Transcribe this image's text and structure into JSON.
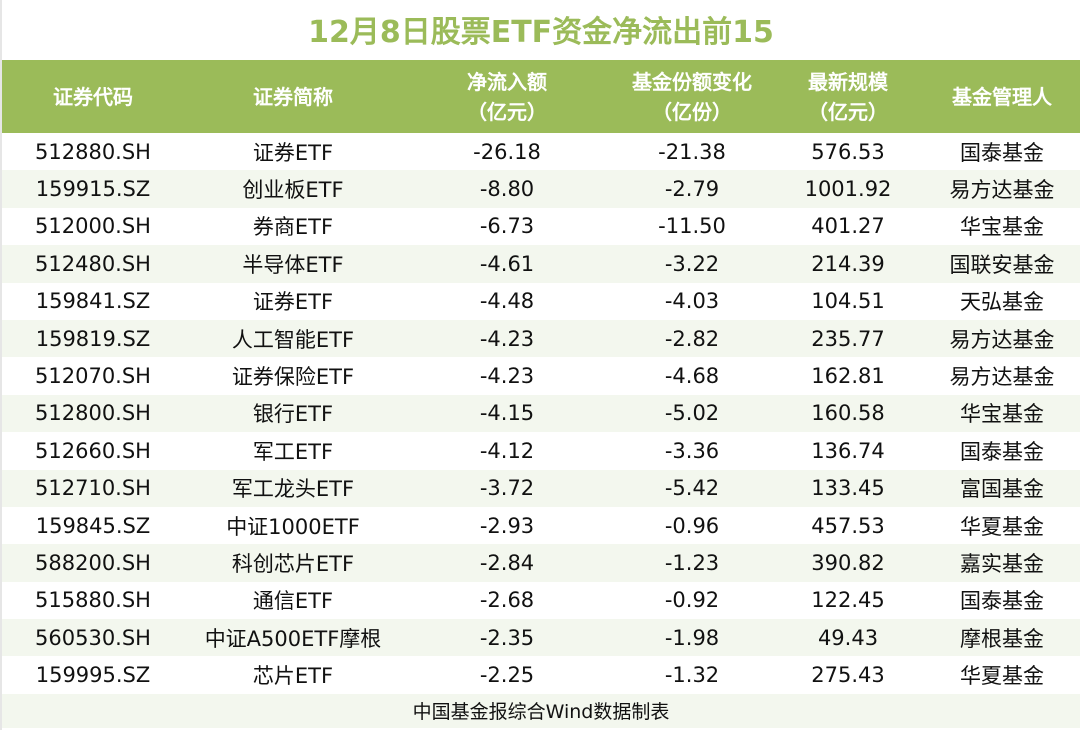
{
  "title": "12月8日股票ETF资金净流出前15",
  "headers": [
    {
      "line1": "证券代码",
      "line2": ""
    },
    {
      "line1": "证券简称",
      "line2": ""
    },
    {
      "line1": "净流入额",
      "line2": "（亿元）"
    },
    {
      "line1": "基金份额变化",
      "line2": "（亿份）"
    },
    {
      "line1": "最新规模",
      "line2": "（亿元）"
    },
    {
      "line1": "基金管理人",
      "line2": ""
    }
  ],
  "rows": [
    [
      "512880.SH",
      "证券ETF",
      "-26.18",
      "-21.38",
      "576.53",
      "国泰基金"
    ],
    [
      "159915.SZ",
      "创业板ETF",
      "-8.80",
      "-2.79",
      "1001.92",
      "易方达基金"
    ],
    [
      "512000.SH",
      "券商ETF",
      "-6.73",
      "-11.50",
      "401.27",
      "华宝基金"
    ],
    [
      "512480.SH",
      "半导体ETF",
      "-4.61",
      "-3.22",
      "214.39",
      "国联安基金"
    ],
    [
      "159841.SZ",
      "证券ETF",
      "-4.48",
      "-4.03",
      "104.51",
      "天弘基金"
    ],
    [
      "159819.SZ",
      "人工智能ETF",
      "-4.23",
      "-2.82",
      "235.77",
      "易方达基金"
    ],
    [
      "512070.SH",
      "证券保险ETF",
      "-4.23",
      "-4.68",
      "162.81",
      "易方达基金"
    ],
    [
      "512800.SH",
      "银行ETF",
      "-4.15",
      "-5.02",
      "160.58",
      "华宝基金"
    ],
    [
      "512660.SH",
      "军工ETF",
      "-4.12",
      "-3.36",
      "136.74",
      "国泰基金"
    ],
    [
      "512710.SH",
      "军工龙头ETF",
      "-3.72",
      "-5.42",
      "133.45",
      "富国基金"
    ],
    [
      "159845.SZ",
      "中证1000ETF",
      "-2.93",
      "-0.96",
      "457.53",
      "华夏基金"
    ],
    [
      "588200.SH",
      "科创芯片ETF",
      "-2.84",
      "-1.23",
      "390.82",
      "嘉实基金"
    ],
    [
      "515880.SH",
      "通信ETF",
      "-2.68",
      "-0.92",
      "122.45",
      "国泰基金"
    ],
    [
      "560530.SH",
      "中证A500ETF摩根",
      "-2.35",
      "-1.98",
      "49.43",
      "摩根基金"
    ],
    [
      "159995.SZ",
      "芯片ETF",
      "-2.25",
      "-1.32",
      "275.43",
      "华夏基金"
    ]
  ],
  "footer": "中国基金报综合Wind数据制表",
  "colors": {
    "accent": "#9bbb59",
    "row_alt": "#f3f7ee"
  }
}
